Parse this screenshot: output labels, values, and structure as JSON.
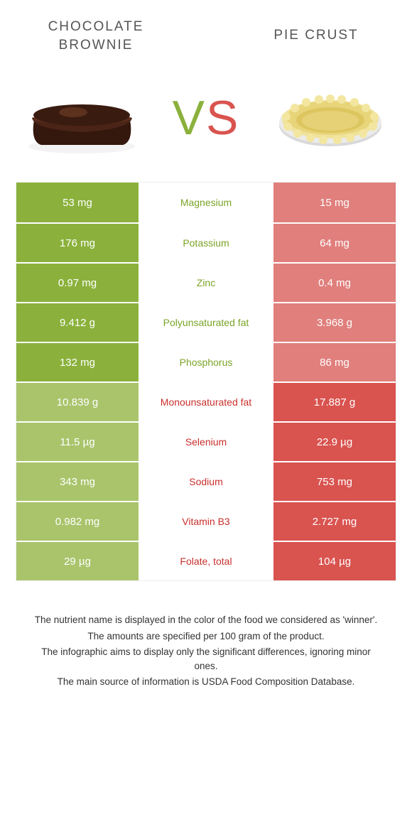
{
  "colors": {
    "green": "#8bb13c",
    "green_pale": "#a9c46b",
    "green_text": "#7ba428",
    "red": "#d9534f",
    "red_pale": "#e07f7c",
    "red_text": "#c9302c"
  },
  "header": {
    "left_title": "CHOCOLATE BROWNIE",
    "right_title": "PIE CRUST",
    "vs_v": "V",
    "vs_s": "S"
  },
  "rows": [
    {
      "left": "53 mg",
      "label": "Magnesium",
      "right": "15 mg",
      "winner": "left"
    },
    {
      "left": "176 mg",
      "label": "Potassium",
      "right": "64 mg",
      "winner": "left"
    },
    {
      "left": "0.97 mg",
      "label": "Zinc",
      "right": "0.4 mg",
      "winner": "left"
    },
    {
      "left": "9.412 g",
      "label": "Polyunsaturated fat",
      "right": "3.968 g",
      "winner": "left"
    },
    {
      "left": "132 mg",
      "label": "Phosphorus",
      "right": "86 mg",
      "winner": "left"
    },
    {
      "left": "10.839 g",
      "label": "Monounsaturated fat",
      "right": "17.887 g",
      "winner": "right"
    },
    {
      "left": "11.5 µg",
      "label": "Selenium",
      "right": "22.9 µg",
      "winner": "right"
    },
    {
      "left": "343 mg",
      "label": "Sodium",
      "right": "753 mg",
      "winner": "right"
    },
    {
      "left": "0.982 mg",
      "label": "Vitamin B3",
      "right": "2.727 mg",
      "winner": "right"
    },
    {
      "left": "29 µg",
      "label": "Folate, total",
      "right": "104 µg",
      "winner": "right"
    }
  ],
  "footnotes": [
    "The nutrient name is displayed in the color of the food we considered as 'winner'.",
    "The amounts are specified per 100 gram of the product.",
    "The infographic aims to display only the significant differences, ignoring minor ones.",
    "The main source of information is USDA Food Composition Database."
  ]
}
